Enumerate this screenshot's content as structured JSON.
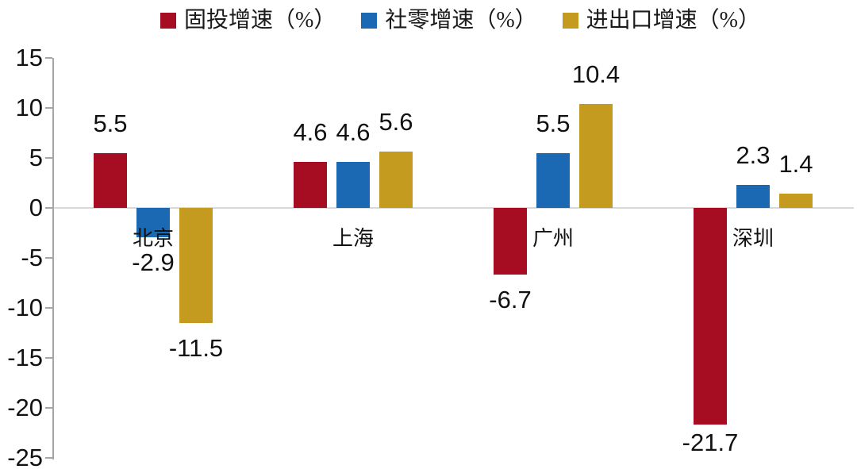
{
  "chart_data": {
    "type": "bar",
    "title": "",
    "xlabel": "",
    "ylabel": "",
    "categories": [
      "北京",
      "上海",
      "广州",
      "深圳"
    ],
    "series": [
      {
        "name": "固投增速（%）",
        "color": "#A60D22",
        "values": [
          5.5,
          4.6,
          -6.7,
          -21.7
        ]
      },
      {
        "name": "社零增速（%）",
        "color": "#1A69B2",
        "values": [
          -2.9,
          4.6,
          5.5,
          2.3
        ]
      },
      {
        "name": "进出口增速（%）",
        "color": "#C49B1E",
        "values": [
          -11.5,
          5.6,
          10.4,
          1.4
        ]
      }
    ],
    "y_ticks": [
      15,
      10,
      5,
      0,
      -5,
      -10,
      -15,
      -20,
      -25
    ],
    "ylim": [
      -25,
      15
    ],
    "legend_position": "top",
    "grid": false,
    "data_labels": true
  },
  "colors": {
    "background": "#FFFFFF",
    "axis_line": "#A6A6A6",
    "zero_line": "#D9D9D9",
    "text": "#111111"
  }
}
